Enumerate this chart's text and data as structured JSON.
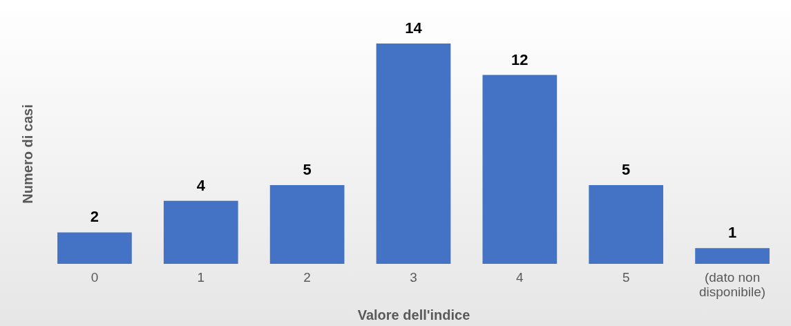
{
  "chart_data": {
    "type": "bar",
    "xlabel": "Valore dell'indice",
    "ylabel": "Numero di casi",
    "categories": [
      "0",
      "1",
      "2",
      "3",
      "4",
      "5",
      "(dato non disponibile)"
    ],
    "values": [
      2,
      4,
      5,
      14,
      12,
      5,
      1
    ],
    "color": "#4472c4",
    "data_labels": true
  }
}
